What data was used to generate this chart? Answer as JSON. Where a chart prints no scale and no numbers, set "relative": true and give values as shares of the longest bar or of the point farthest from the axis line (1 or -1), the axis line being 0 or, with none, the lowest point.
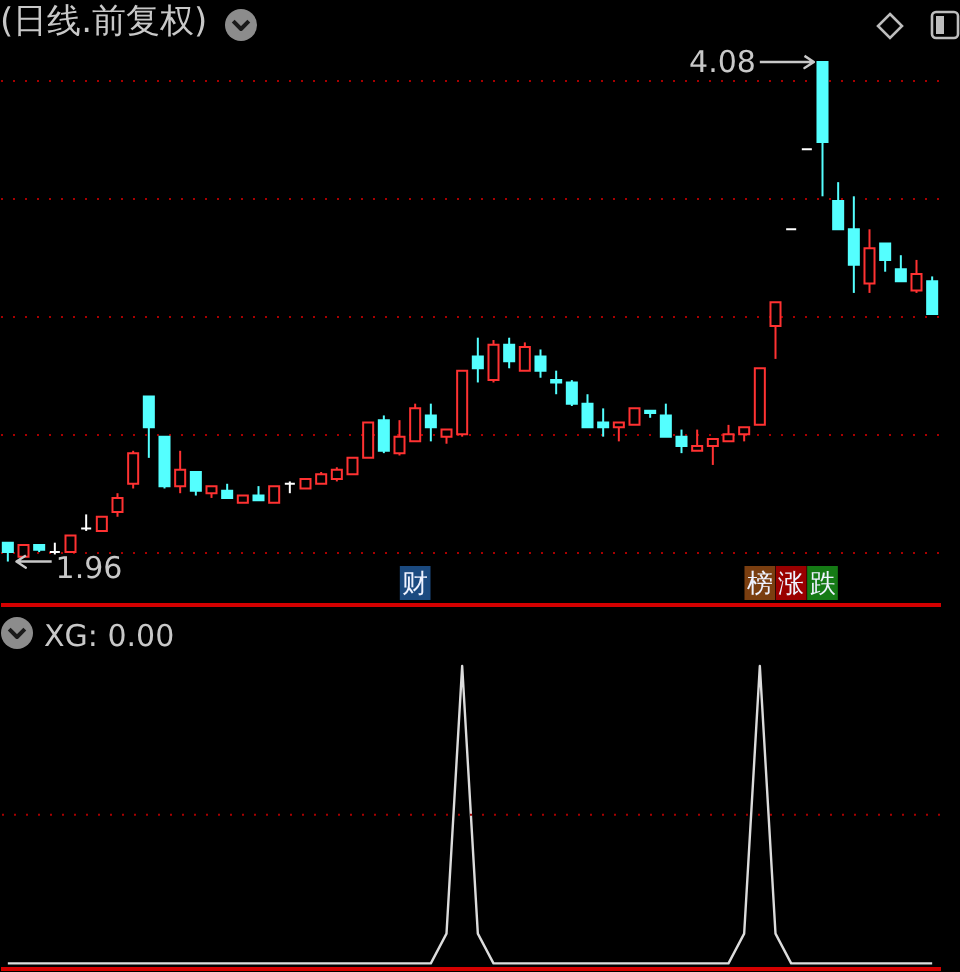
{
  "chart_data": [
    {
      "type": "candlestick",
      "title": "(日线.前复权)",
      "categories": [
        null,
        null,
        null,
        null,
        null,
        null,
        null,
        null,
        null,
        null,
        null,
        null,
        null,
        null,
        null,
        null,
        null,
        null,
        null,
        null,
        null,
        null,
        null,
        null,
        null,
        null,
        null,
        null,
        null,
        null,
        null,
        null,
        null,
        null,
        null,
        null,
        null,
        null,
        null,
        null,
        null,
        null,
        null,
        null,
        null,
        null,
        null,
        null,
        null,
        null,
        null,
        null,
        null,
        null,
        null,
        null,
        null,
        null,
        null,
        null
      ],
      "ohlc": [
        [
          2.04,
          2.04,
          1.96,
          2.0
        ],
        [
          1.98,
          2.03,
          1.98,
          2.03
        ],
        [
          2.03,
          2.03,
          2.0,
          2.01
        ],
        [
          2.0,
          2.04,
          1.99,
          2.0
        ],
        [
          2.0,
          2.07,
          2.0,
          2.07
        ],
        [
          2.1,
          2.16,
          2.09,
          2.1
        ],
        [
          2.09,
          2.15,
          2.09,
          2.15
        ],
        [
          2.17,
          2.25,
          2.15,
          2.23
        ],
        [
          2.29,
          2.43,
          2.27,
          2.42
        ],
        [
          2.66,
          2.66,
          2.4,
          2.53
        ],
        [
          2.49,
          2.49,
          2.27,
          2.28
        ],
        [
          2.28,
          2.43,
          2.25,
          2.35
        ],
        [
          2.34,
          2.34,
          2.24,
          2.26
        ],
        [
          2.25,
          2.28,
          2.23,
          2.28
        ],
        [
          2.26,
          2.29,
          2.23,
          2.23
        ],
        [
          2.21,
          2.24,
          2.21,
          2.24
        ],
        [
          2.24,
          2.28,
          2.22,
          2.22
        ],
        [
          2.21,
          2.28,
          2.21,
          2.28
        ],
        [
          2.29,
          2.3,
          2.25,
          2.29
        ],
        [
          2.27,
          2.31,
          2.27,
          2.31
        ],
        [
          2.29,
          2.34,
          2.29,
          2.33
        ],
        [
          2.31,
          2.36,
          2.3,
          2.35
        ],
        [
          2.33,
          2.4,
          2.33,
          2.4
        ],
        [
          2.4,
          2.55,
          2.4,
          2.55
        ],
        [
          2.56,
          2.58,
          2.42,
          2.43
        ],
        [
          2.42,
          2.56,
          2.41,
          2.49
        ],
        [
          2.47,
          2.63,
          2.47,
          2.61
        ],
        [
          2.58,
          2.63,
          2.47,
          2.53
        ],
        [
          2.49,
          2.52,
          2.46,
          2.52
        ],
        [
          2.5,
          2.77,
          2.49,
          2.77
        ],
        [
          2.83,
          2.91,
          2.72,
          2.78
        ],
        [
          2.73,
          2.9,
          2.72,
          2.88
        ],
        [
          2.88,
          2.91,
          2.78,
          2.81
        ],
        [
          2.77,
          2.89,
          2.77,
          2.87
        ],
        [
          2.83,
          2.86,
          2.74,
          2.77
        ],
        [
          2.73,
          2.77,
          2.67,
          2.72
        ],
        [
          2.72,
          2.73,
          2.62,
          2.63
        ],
        [
          2.63,
          2.67,
          2.53,
          2.53
        ],
        [
          2.55,
          2.61,
          2.49,
          2.53
        ],
        [
          2.53,
          2.55,
          2.47,
          2.55
        ],
        [
          2.54,
          2.61,
          2.54,
          2.61
        ],
        [
          2.6,
          2.6,
          2.57,
          2.59
        ],
        [
          2.58,
          2.63,
          2.49,
          2.49
        ],
        [
          2.49,
          2.52,
          2.42,
          2.45
        ],
        [
          2.43,
          2.52,
          2.43,
          2.45
        ],
        [
          2.45,
          2.48,
          2.37,
          2.48
        ],
        [
          2.47,
          2.54,
          2.47,
          2.5
        ],
        [
          2.5,
          2.53,
          2.47,
          2.53
        ],
        [
          2.54,
          2.78,
          2.54,
          2.78
        ],
        [
          2.96,
          3.06,
          2.82,
          3.06
        ],
        [
          3.37,
          3.37,
          3.37,
          3.37
        ],
        [
          3.71,
          3.71,
          3.71,
          3.71
        ],
        [
          4.08,
          4.08,
          3.51,
          3.74
        ],
        [
          3.49,
          3.57,
          3.37,
          3.37
        ],
        [
          3.37,
          3.51,
          3.1,
          3.22
        ],
        [
          3.14,
          3.37,
          3.1,
          3.29
        ],
        [
          3.31,
          3.31,
          3.19,
          3.24
        ],
        [
          3.2,
          3.26,
          3.15,
          3.15
        ],
        [
          3.11,
          3.24,
          3.1,
          3.18
        ],
        [
          3.15,
          3.17,
          3.01,
          3.01
        ]
      ],
      "colors": [
        "#54ffff",
        "#ff3232",
        "#54ffff",
        "#ffffff",
        "#ff3232",
        "#ffffff",
        "#ff3232",
        "#ff3232",
        "#ff3232",
        "#54ffff",
        "#54ffff",
        "#ff3232",
        "#54ffff",
        "#ff3232",
        "#54ffff",
        "#ff3232",
        "#54ffff",
        "#ff3232",
        "#ffffff",
        "#ff3232",
        "#ff3232",
        "#ff3232",
        "#ff3232",
        "#ff3232",
        "#54ffff",
        "#ff3232",
        "#ff3232",
        "#54ffff",
        "#ff3232",
        "#ff3232",
        "#54ffff",
        "#ff3232",
        "#54ffff",
        "#ff3232",
        "#54ffff",
        "#54ffff",
        "#54ffff",
        "#54ffff",
        "#54ffff",
        "#ff3232",
        "#ff3232",
        "#54ffff",
        "#54ffff",
        "#54ffff",
        "#ff3232",
        "#ff3232",
        "#ff3232",
        "#ff3232",
        "#ff3232",
        "#ff3232",
        "#ffffff",
        "#ffffff",
        "#54ffff",
        "#54ffff",
        "#54ffff",
        "#ff3232",
        "#54ffff",
        "#54ffff",
        "#ff3232",
        "#54ffff"
      ],
      "yticks": [
        2,
        2.5,
        3,
        3.5,
        4
      ],
      "grid": "y",
      "tick_labels": false,
      "annotations": [
        "4.08",
        "1.96",
        "财",
        "榜",
        "涨",
        "跌"
      ]
    },
    {
      "type": "line",
      "title": "XG: 0.00",
      "categories": [
        null,
        null,
        null,
        null,
        null,
        null,
        null,
        null,
        null,
        null,
        null,
        null,
        null,
        null,
        null,
        null,
        null,
        null,
        null,
        null,
        null,
        null,
        null,
        null,
        null,
        null,
        null,
        null,
        null,
        null,
        null,
        null,
        null,
        null,
        null,
        null,
        null,
        null,
        null,
        null,
        null,
        null,
        null,
        null,
        null,
        null,
        null,
        null,
        null,
        null,
        null,
        null,
        null,
        null,
        null,
        null,
        null,
        null,
        null,
        null
      ],
      "series": [
        {
          "color": "#dcdcdc",
          "values": [
            0,
            0,
            0,
            0,
            0,
            0,
            0,
            0,
            0,
            0,
            0,
            0,
            0,
            0,
            0,
            0,
            0,
            0,
            0,
            0,
            0,
            0,
            0,
            0,
            0,
            0,
            0,
            0,
            0.1,
            1,
            0.1,
            0,
            0,
            0,
            0,
            0,
            0,
            0,
            0,
            0,
            0,
            0,
            0,
            0,
            0,
            0,
            0,
            0.1,
            1,
            0.1,
            0,
            0,
            0,
            0,
            0,
            0,
            0,
            0,
            0,
            0
          ]
        }
      ],
      "relative": true,
      "ref_lines": [
        {
          "axis": "y",
          "value": 0.5,
          "color": "#a80000",
          "line_style": "dotted"
        }
      ]
    }
  ]
}
